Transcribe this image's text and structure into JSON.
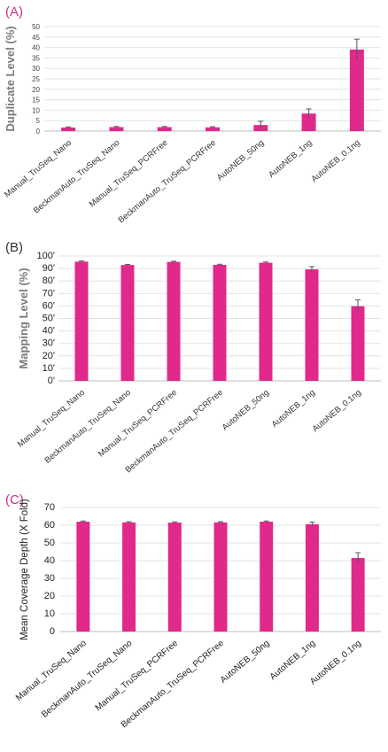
{
  "bar_color": "#e0298b",
  "chart_data": [
    {
      "panel_label": "(A)",
      "panel_color": "#c3348f",
      "type": "bar",
      "ylabel": "Duplicate Level (%)",
      "ylim": [
        0,
        50
      ],
      "yticks": [
        "0",
        "5",
        "10",
        "15",
        "20",
        "25",
        "30",
        "35",
        "40",
        "45",
        "50"
      ],
      "grid": true,
      "categories": [
        "Manual_TruSeq_Nano",
        "BeckmanAuto_TruSeq_Nano",
        "Manual_TruSeq_PCRFree",
        "BeckmanAuto_TruSeq_PCRFree",
        "AutoNEB_50ng",
        "AutoNEB_1ng",
        "AutoNEB_0.1ng"
      ],
      "values": [
        1.7,
        1.9,
        1.9,
        1.8,
        2.9,
        8.4,
        39.0
      ],
      "errors": [
        0.3,
        0.3,
        0.3,
        0.3,
        1.8,
        2.2,
        5.0
      ]
    },
    {
      "panel_label": "(B)",
      "panel_color": "#333333",
      "type": "bar",
      "ylabel": "Mapping Level (%)",
      "ylim": [
        0,
        100
      ],
      "yticks": [
        "0'",
        "10'",
        "20'",
        "30'",
        "40'",
        "50'",
        "60'",
        "70'",
        "80'",
        "90'",
        "100'"
      ],
      "grid": true,
      "categories": [
        "Manual_TruSeq_Nano",
        "BeckmanAuto_TruSeq_Nano",
        "Manual_TruSeq_PCRFree",
        "BeckmanAuto_TruSeq_PCRFree",
        "AutoNEB_50ng",
        "AutoNEB_1ng",
        "AutoNEB_0.1ng"
      ],
      "values": [
        95.5,
        92.8,
        95.3,
        92.9,
        94.6,
        89.3,
        59.8
      ],
      "errors": [
        0.5,
        0.5,
        0.5,
        0.5,
        0.6,
        2.2,
        5.0
      ]
    },
    {
      "panel_label": "(C)",
      "panel_color": "#c3348f",
      "type": "bar",
      "ylabel": "Mean Coverage Depth (X Fold)",
      "ylim": [
        0,
        70
      ],
      "yticks": [
        "0",
        "10",
        "20",
        "30",
        "40",
        "50",
        "60",
        "70"
      ],
      "grid": true,
      "categories": [
        "Manual_TruSeq_Nano",
        "BeckmanAuto_TruSeq_Nano",
        "Manual_TruSeq_PCRFree",
        "BeckmanAuto_TruSeq_PCRFree",
        "AutoNEB_50ng",
        "AutoNEB_1ng",
        "AutoNEB_0.1ng"
      ],
      "values": [
        62.0,
        61.6,
        61.5,
        61.6,
        62.0,
        60.6,
        41.5
      ],
      "errors": [
        0.4,
        0.4,
        0.4,
        0.4,
        0.4,
        1.2,
        3.0
      ]
    }
  ]
}
